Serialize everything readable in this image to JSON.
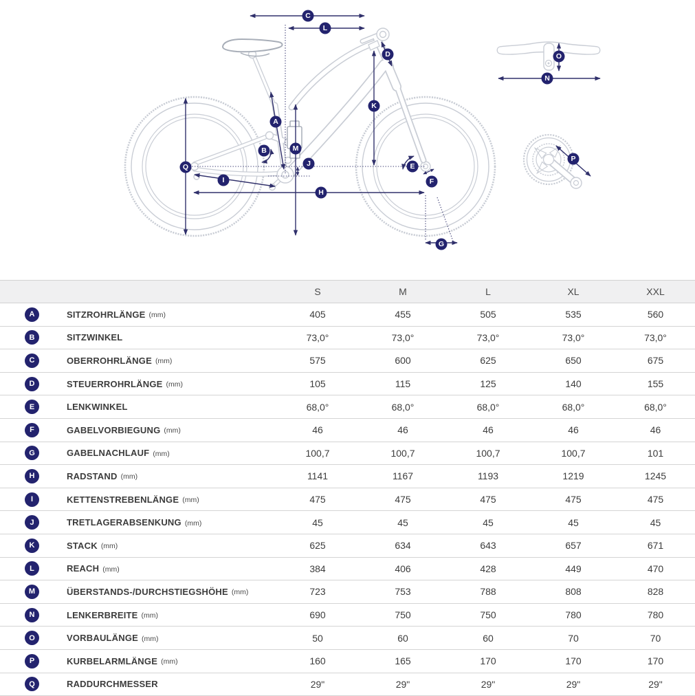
{
  "table": {
    "columns": [
      "S",
      "M",
      "L",
      "XL",
      "XXL"
    ],
    "rows": [
      {
        "key": "A",
        "label": "SITZROHRLÄNGE",
        "unit": "(mm)",
        "values": [
          "405",
          "455",
          "505",
          "535",
          "560"
        ]
      },
      {
        "key": "B",
        "label": "SITZWINKEL",
        "unit": "",
        "values": [
          "73,0°",
          "73,0°",
          "73,0°",
          "73,0°",
          "73,0°"
        ]
      },
      {
        "key": "C",
        "label": "OBERROHRLÄNGE",
        "unit": "(mm)",
        "values": [
          "575",
          "600",
          "625",
          "650",
          "675"
        ]
      },
      {
        "key": "D",
        "label": "STEUERROHRLÄNGE",
        "unit": "(mm)",
        "values": [
          "105",
          "115",
          "125",
          "140",
          "155"
        ]
      },
      {
        "key": "E",
        "label": "LENKWINKEL",
        "unit": "",
        "values": [
          "68,0°",
          "68,0°",
          "68,0°",
          "68,0°",
          "68,0°"
        ]
      },
      {
        "key": "F",
        "label": "GABELVORBIEGUNG",
        "unit": "(mm)",
        "values": [
          "46",
          "46",
          "46",
          "46",
          "46"
        ]
      },
      {
        "key": "G",
        "label": "GABELNACHLAUF",
        "unit": "(mm)",
        "values": [
          "100,7",
          "100,7",
          "100,7",
          "100,7",
          "101"
        ]
      },
      {
        "key": "H",
        "label": "RADSTAND",
        "unit": "(mm)",
        "values": [
          "1141",
          "1167",
          "1193",
          "1219",
          "1245"
        ]
      },
      {
        "key": "I",
        "label": "KETTENSTREBENLÄNGE",
        "unit": "(mm)",
        "values": [
          "475",
          "475",
          "475",
          "475",
          "475"
        ]
      },
      {
        "key": "J",
        "label": "TRETLAGERABSENKUNG",
        "unit": "(mm)",
        "values": [
          "45",
          "45",
          "45",
          "45",
          "45"
        ]
      },
      {
        "key": "K",
        "label": "STACK",
        "unit": "(mm)",
        "values": [
          "625",
          "634",
          "643",
          "657",
          "671"
        ]
      },
      {
        "key": "L",
        "label": "REACH",
        "unit": "(mm)",
        "values": [
          "384",
          "406",
          "428",
          "449",
          "470"
        ]
      },
      {
        "key": "M",
        "label": "ÜBERSTANDS-/DURCHSTIEGSHÖHE",
        "unit": "(mm)",
        "values": [
          "723",
          "753",
          "788",
          "808",
          "828"
        ]
      },
      {
        "key": "N",
        "label": "LENKERBREITE",
        "unit": "(mm)",
        "values": [
          "690",
          "750",
          "750",
          "780",
          "780"
        ]
      },
      {
        "key": "O",
        "label": "VORBAULÄNGE",
        "unit": "(mm)",
        "values": [
          "50",
          "60",
          "60",
          "70",
          "70"
        ]
      },
      {
        "key": "P",
        "label": "KURBELARMLÄNGE",
        "unit": "(mm)",
        "values": [
          "160",
          "165",
          "170",
          "170",
          "170"
        ]
      },
      {
        "key": "Q",
        "label": "RADDURCHMESSER",
        "unit": "",
        "values": [
          "29\"",
          "29\"",
          "29\"",
          "29\"",
          "29\""
        ]
      }
    ]
  },
  "colors": {
    "badge": "#23236e",
    "arrow": "#30306b",
    "bike_line": "#c9cdd5",
    "bike_dark": "#9aa1ad",
    "saddle": "#a8aeb8"
  }
}
